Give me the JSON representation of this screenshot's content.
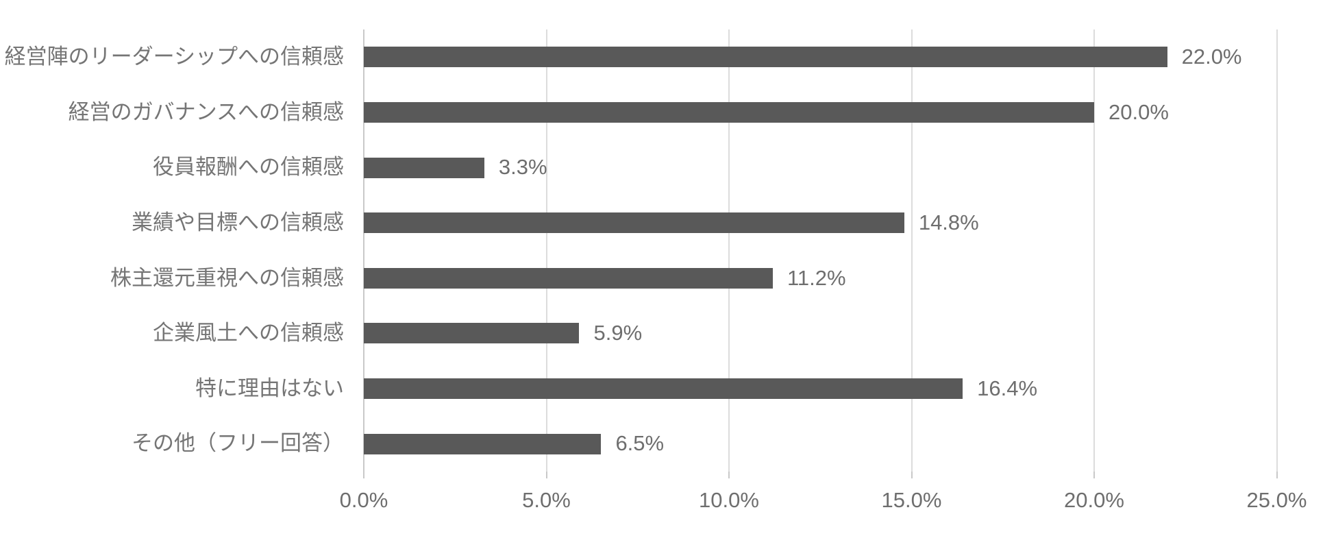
{
  "chart_data": {
    "type": "bar",
    "orientation": "horizontal",
    "title": "",
    "categories": [
      "経営陣のリーダーシップへの信頼感",
      "経営のガバナンスへの信頼感",
      "役員報酬への信頼感",
      "業績や目標への信頼感",
      "株主還元重視への信頼感",
      "企業風土への信頼感",
      "特に理由はない",
      "その他（フリー回答）"
    ],
    "values": [
      22.0,
      20.0,
      3.3,
      14.8,
      11.2,
      5.9,
      16.4,
      6.5
    ],
    "value_labels": [
      "22.0%",
      "20.0%",
      "3.3%",
      "14.8%",
      "11.2%",
      "5.9%",
      "16.4%",
      "6.5%"
    ],
    "x_tick_labels": [
      "0.0%",
      "5.0%",
      "10.0%",
      "15.0%",
      "20.0%",
      "25.0%"
    ],
    "x_tick_values": [
      0,
      5,
      10,
      15,
      20,
      25
    ],
    "xlim": [
      0,
      25
    ],
    "grid": true,
    "legend": false,
    "colors": {
      "bar": "#595959",
      "gridline": "#dcdcdc",
      "axis_line": "#c9c9c9",
      "category_text": "#757575",
      "value_text": "#6e6e6e",
      "background": "#ffffff"
    }
  }
}
